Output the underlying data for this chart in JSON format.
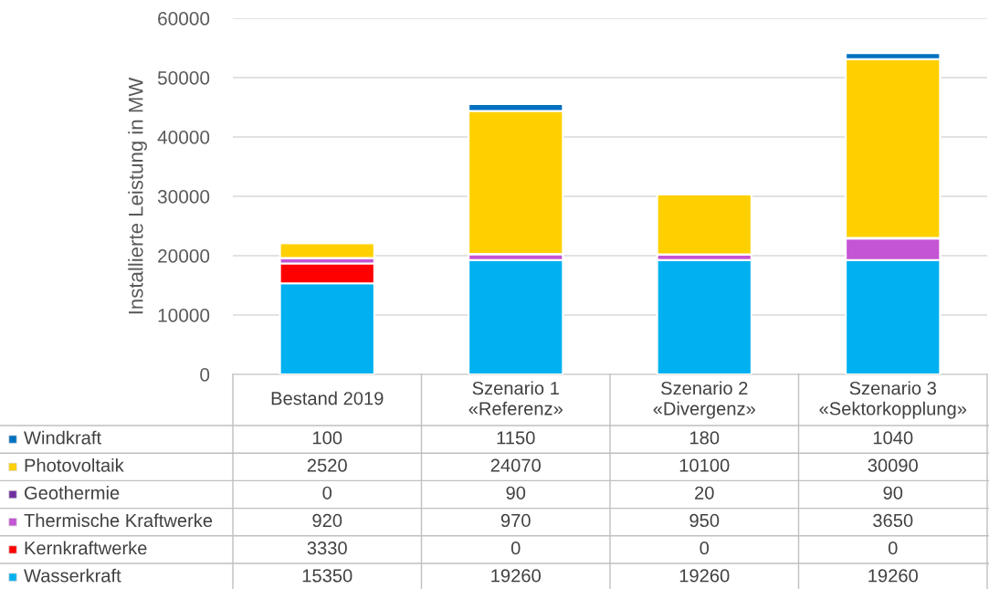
{
  "chart_data": {
    "type": "bar",
    "stacked": true,
    "ylabel": "Installierte Leistung in MW",
    "categories": [
      "Bestand 2019",
      "Szenario 1\n«Referenz»",
      "Szenario 2\n«Divergenz»",
      "Szenario 3\n«Sektorkopplung»"
    ],
    "series": [
      {
        "name": "Wasserkraft",
        "color": "#00b0f0",
        "values": [
          15350,
          19260,
          19260,
          19260
        ]
      },
      {
        "name": "Kernkraftwerke",
        "color": "#ff0000",
        "values": [
          3330,
          0,
          0,
          0
        ]
      },
      {
        "name": "Thermische Kraftwerke",
        "color": "#c455d4",
        "values": [
          920,
          970,
          950,
          3650
        ]
      },
      {
        "name": "Geothermie",
        "color": "#7030a0",
        "values": [
          0,
          90,
          20,
          90
        ]
      },
      {
        "name": "Photovoltaik",
        "color": "#ffd000",
        "values": [
          2520,
          24070,
          10100,
          30090
        ]
      },
      {
        "name": "Windkraft",
        "color": "#0070c0",
        "values": [
          100,
          1150,
          180,
          1040
        ]
      }
    ],
    "ylim": [
      0,
      60000
    ],
    "yticks": [
      0,
      10000,
      20000,
      30000,
      40000,
      50000,
      60000
    ],
    "grid": "y",
    "data_labels": true,
    "legend": "bottom left"
  }
}
